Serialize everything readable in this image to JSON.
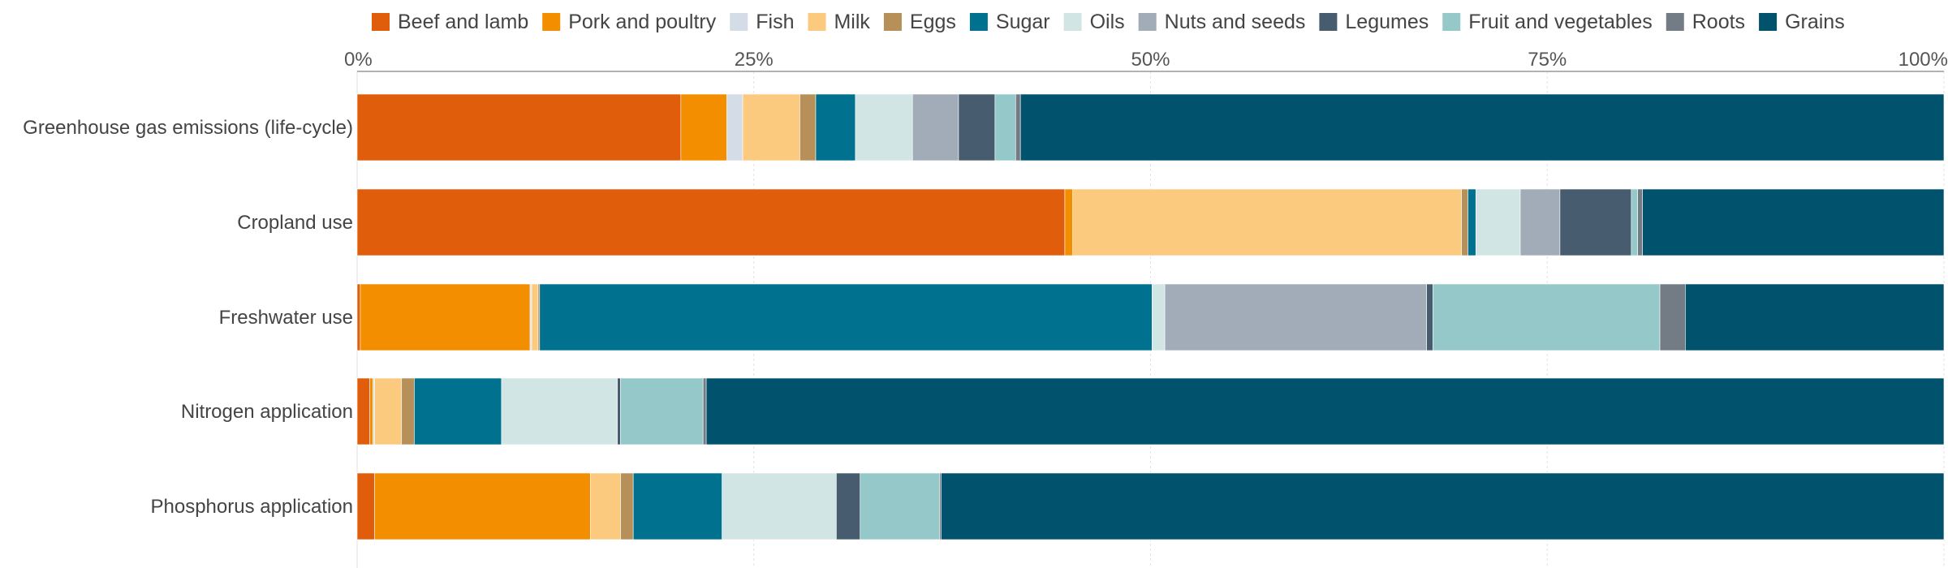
{
  "chart_data": {
    "type": "bar",
    "orientation": "horizontal",
    "stacked": true,
    "percent": true,
    "categories": [
      "Greenhouse gas emissions (life-cycle)",
      "Cropland use",
      "Freshwater use",
      "Nitrogen application",
      "Phosphorus application"
    ],
    "series": [
      {
        "name": "Beef and lamb",
        "color": "#e05e0b",
        "values": [
          20.4,
          44.6,
          0.2,
          0.8,
          1.1
        ]
      },
      {
        "name": "Pork and poultry",
        "color": "#f28e00",
        "values": [
          2.9,
          0.5,
          10.7,
          0.2,
          13.6
        ]
      },
      {
        "name": "Fish",
        "color": "#d4dce7",
        "values": [
          1.0,
          0.0,
          0.1,
          0.1,
          0.0
        ]
      },
      {
        "name": "Milk",
        "color": "#fbca7f",
        "values": [
          3.6,
          24.5,
          0.4,
          1.7,
          1.9
        ]
      },
      {
        "name": "Eggs",
        "color": "#b69058",
        "values": [
          1.0,
          0.4,
          0.1,
          0.8,
          0.8
        ]
      },
      {
        "name": "Sugar",
        "color": "#00728f",
        "values": [
          2.5,
          0.5,
          38.6,
          5.5,
          5.6
        ]
      },
      {
        "name": "Oils",
        "color": "#d1e6e4",
        "values": [
          3.6,
          2.8,
          0.8,
          7.3,
          7.2
        ]
      },
      {
        "name": "Nuts and seeds",
        "color": "#a1acb8",
        "values": [
          2.9,
          2.5,
          16.5,
          0.0,
          0.0
        ]
      },
      {
        "name": "Legumes",
        "color": "#475d6f",
        "values": [
          2.3,
          4.5,
          0.4,
          0.2,
          1.5
        ]
      },
      {
        "name": "Fruit and vegetables",
        "color": "#95c9c9",
        "values": [
          1.3,
          0.4,
          14.3,
          5.2,
          5.0
        ]
      },
      {
        "name": "Roots",
        "color": "#737b85",
        "values": [
          0.3,
          0.3,
          1.6,
          0.2,
          0.1
        ]
      },
      {
        "name": "Grains",
        "color": "#00526d",
        "values": [
          58.2,
          19.0,
          16.3,
          78.0,
          63.2
        ]
      }
    ],
    "xlim": [
      0,
      100
    ],
    "xticks": [
      "0%",
      "25%",
      "50%",
      "75%",
      "100%"
    ],
    "tick_values": [
      0,
      25,
      50,
      75,
      100
    ],
    "grid": true,
    "legend_position": "top"
  }
}
